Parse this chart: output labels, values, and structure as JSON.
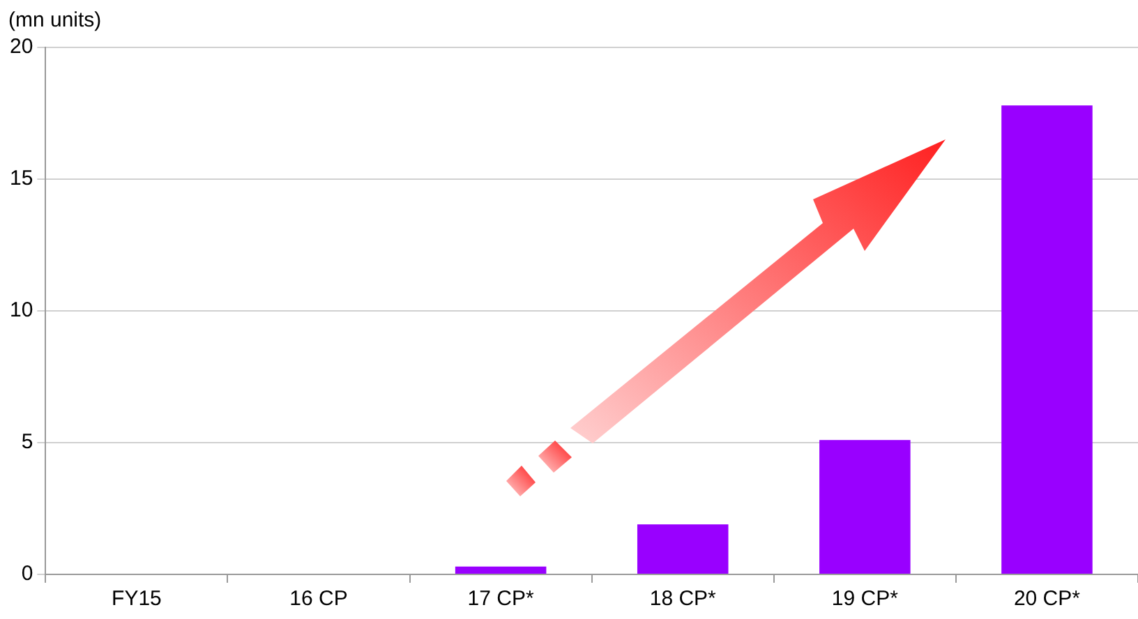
{
  "chart_data": {
    "type": "bar",
    "ylabel": "(mn units)",
    "categories": [
      "FY15",
      "16 CP",
      "17 CP*",
      "18 CP*",
      "19 CP*",
      "20 CP*"
    ],
    "values": [
      0,
      0,
      0.3,
      1.9,
      5.1,
      17.8
    ],
    "color": "#9900ff",
    "ylim": [
      0,
      20
    ],
    "yticks": [
      0,
      5,
      10,
      15,
      20
    ],
    "grid": "y",
    "legend": false
  }
}
